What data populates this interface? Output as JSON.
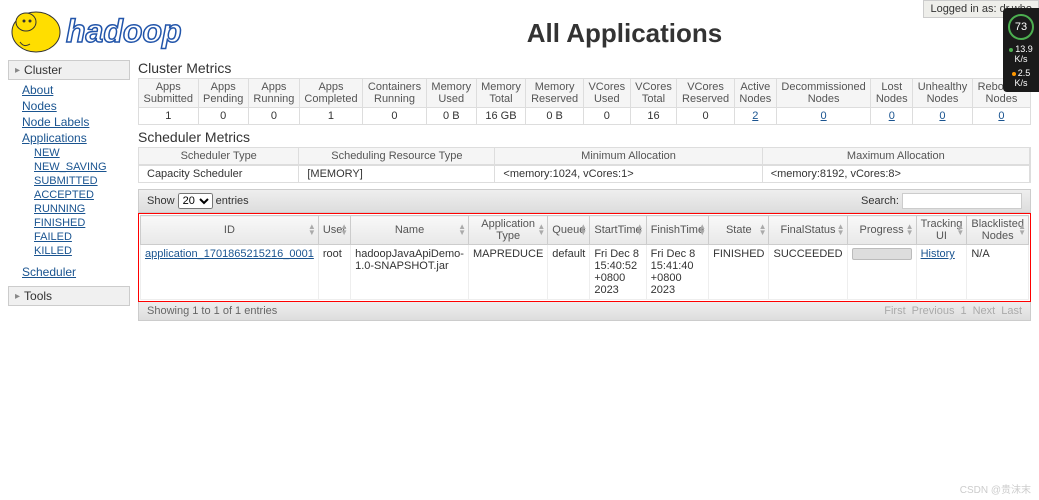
{
  "login": {
    "label": "Logged in as:",
    "user": "dr.who"
  },
  "widget": {
    "pct": "73",
    "m1": "13.9",
    "u1": "K/s",
    "m2": "2.5",
    "u2": "K/s"
  },
  "title": "All Applications",
  "logo_text": "hadoop",
  "nav": {
    "cluster": "Cluster",
    "about": "About",
    "nodes": "Nodes",
    "node_labels": "Node Labels",
    "applications": "Applications",
    "states": [
      "NEW",
      "NEW_SAVING",
      "SUBMITTED",
      "ACCEPTED",
      "RUNNING",
      "FINISHED",
      "FAILED",
      "KILLED"
    ],
    "scheduler": "Scheduler",
    "tools": "Tools"
  },
  "cluster_metrics": {
    "title": "Cluster Metrics",
    "headers": [
      "Apps Submitted",
      "Apps Pending",
      "Apps Running",
      "Apps Completed",
      "Containers Running",
      "Memory Used",
      "Memory Total",
      "Memory Reserved",
      "VCores Used",
      "VCores Total",
      "VCores Reserved",
      "Active Nodes",
      "Decommissioned Nodes",
      "Lost Nodes",
      "Unhealthy Nodes",
      "Rebooted Nodes"
    ],
    "values": [
      "1",
      "0",
      "0",
      "1",
      "0",
      "0 B",
      "16 GB",
      "0 B",
      "0",
      "16",
      "0",
      "2",
      "0",
      "0",
      "0",
      "0"
    ],
    "links": [
      false,
      false,
      false,
      false,
      false,
      false,
      false,
      false,
      false,
      false,
      false,
      true,
      true,
      true,
      true,
      true
    ]
  },
  "scheduler_metrics": {
    "title": "Scheduler Metrics",
    "cols": [
      {
        "h": "Scheduler Type",
        "v": "Capacity Scheduler",
        "w": "18%"
      },
      {
        "h": "Scheduling Resource Type",
        "v": "[MEMORY]",
        "w": "22%"
      },
      {
        "h": "Minimum Allocation",
        "v": "<memory:1024, vCores:1>",
        "w": "30%"
      },
      {
        "h": "Maximum Allocation",
        "v": "<memory:8192, vCores:8>",
        "w": "30%"
      }
    ]
  },
  "dt": {
    "show": "Show",
    "entries": "entries",
    "page_size": "20",
    "search": "Search:",
    "headers": [
      "ID",
      "User",
      "Name",
      "Application Type",
      "Queue",
      "StartTime",
      "FinishTime",
      "State",
      "FinalStatus",
      "Progress",
      "Tracking UI",
      "Blacklisted Nodes"
    ],
    "row": {
      "id": "application_1701865215216_0001",
      "user": "root",
      "name": "hadoopJavaApiDemo-1.0-SNAPSHOT.jar",
      "type": "MAPREDUCE",
      "queue": "default",
      "start": "Fri Dec 8 15:40:52 +0800 2023",
      "finish": "Fri Dec 8 15:41:40 +0800 2023",
      "state": "FINISHED",
      "final": "SUCCEEDED",
      "tracking": "History",
      "blacklisted": "N/A"
    },
    "info": "Showing 1 to 1 of 1 entries",
    "pager": [
      "First",
      "Previous",
      "1",
      "Next",
      "Last"
    ]
  },
  "watermark": "CSDN @贵沫末"
}
